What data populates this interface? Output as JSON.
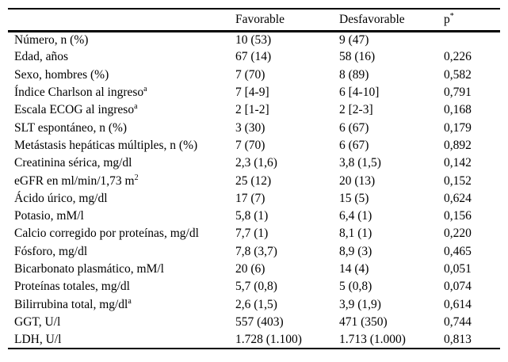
{
  "page": {
    "background_color": "#ffffff",
    "text_color": "#000000",
    "rule_color": "#000000"
  },
  "table": {
    "header": {
      "col_label": "",
      "col_favorable": "Favorable",
      "col_desfavorable": "Desfavorable",
      "col_p": "p",
      "col_p_sup": "*"
    },
    "rows": [
      {
        "label": "Número, n (%)",
        "sup": "",
        "favorable": "10 (53)",
        "desfavorable": "9 (47)",
        "p": ""
      },
      {
        "label": "Edad, años",
        "sup": "",
        "favorable": "67 (14)",
        "desfavorable": "58 (16)",
        "p": "0,226"
      },
      {
        "label": "Sexo, hombres (%)",
        "sup": "",
        "favorable": "7 (70)",
        "desfavorable": "8 (89)",
        "p": "0,582"
      },
      {
        "label": "Índice Charlson al ingreso",
        "sup": "a",
        "favorable": "7 [4-9]",
        "desfavorable": "6 [4-10]",
        "p": "0,791"
      },
      {
        "label": "Escala ECOG al ingreso",
        "sup": "a",
        "favorable": "2 [1-2]",
        "desfavorable": "2 [2-3]",
        "p": "0,168"
      },
      {
        "label": "SLT espontáneo, n (%)",
        "sup": "",
        "favorable": "3 (30)",
        "desfavorable": "6 (67)",
        "p": "0,179"
      },
      {
        "label": "Metástasis hepáticas múltiples, n (%)",
        "sup": "",
        "favorable": "7 (70)",
        "desfavorable": "6 (67)",
        "p": "0,892"
      },
      {
        "label": "Creatinina sérica, mg/dl",
        "sup": "",
        "favorable": "2,3 (1,6)",
        "desfavorable": "3,8 (1,5)",
        "p": "0,142"
      },
      {
        "label": "eGFR en ml/min/1,73 m",
        "sup": "2",
        "favorable": "25 (12)",
        "desfavorable": "20 (13)",
        "p": "0,152"
      },
      {
        "label": "Ácido úrico, mg/dl",
        "sup": "",
        "favorable": "17 (7)",
        "desfavorable": "15 (5)",
        "p": "0,624"
      },
      {
        "label": "Potasio, mM/l",
        "sup": "",
        "favorable": "5,8 (1)",
        "desfavorable": "6,4 (1)",
        "p": "0,156"
      },
      {
        "label": "Calcio corregido por proteínas, mg/dl",
        "sup": "",
        "favorable": "7,7 (1)",
        "desfavorable": "8,1 (1)",
        "p": "0,220"
      },
      {
        "label": "Fósforo, mg/dl",
        "sup": "",
        "favorable": "7,8 (3,7)",
        "desfavorable": "8,9 (3)",
        "p": "0,465"
      },
      {
        "label": "Bicarbonato plasmático, mM/l",
        "sup": "",
        "favorable": "20 (6)",
        "desfavorable": "14 (4)",
        "p": "0,051"
      },
      {
        "label": "Proteínas totales, mg/dl",
        "sup": "",
        "favorable": "5,7 (0,8)",
        "desfavorable": "5 (0,8)",
        "p": "0,074"
      },
      {
        "label": "Bilirrubina total, mg/dl",
        "sup": "a",
        "favorable": "2,6 (1,5)",
        "desfavorable": "3,9 (1,9)",
        "p": "0,614"
      },
      {
        "label": "GGT, U/l",
        "sup": "",
        "favorable": "557 (403)",
        "desfavorable": "471 (350)",
        "p": "0,744"
      },
      {
        "label": "LDH, U/l",
        "sup": "",
        "favorable": "1.728 (1.100)",
        "desfavorable": "1.713 (1.000)",
        "p": "0,813"
      }
    ]
  }
}
